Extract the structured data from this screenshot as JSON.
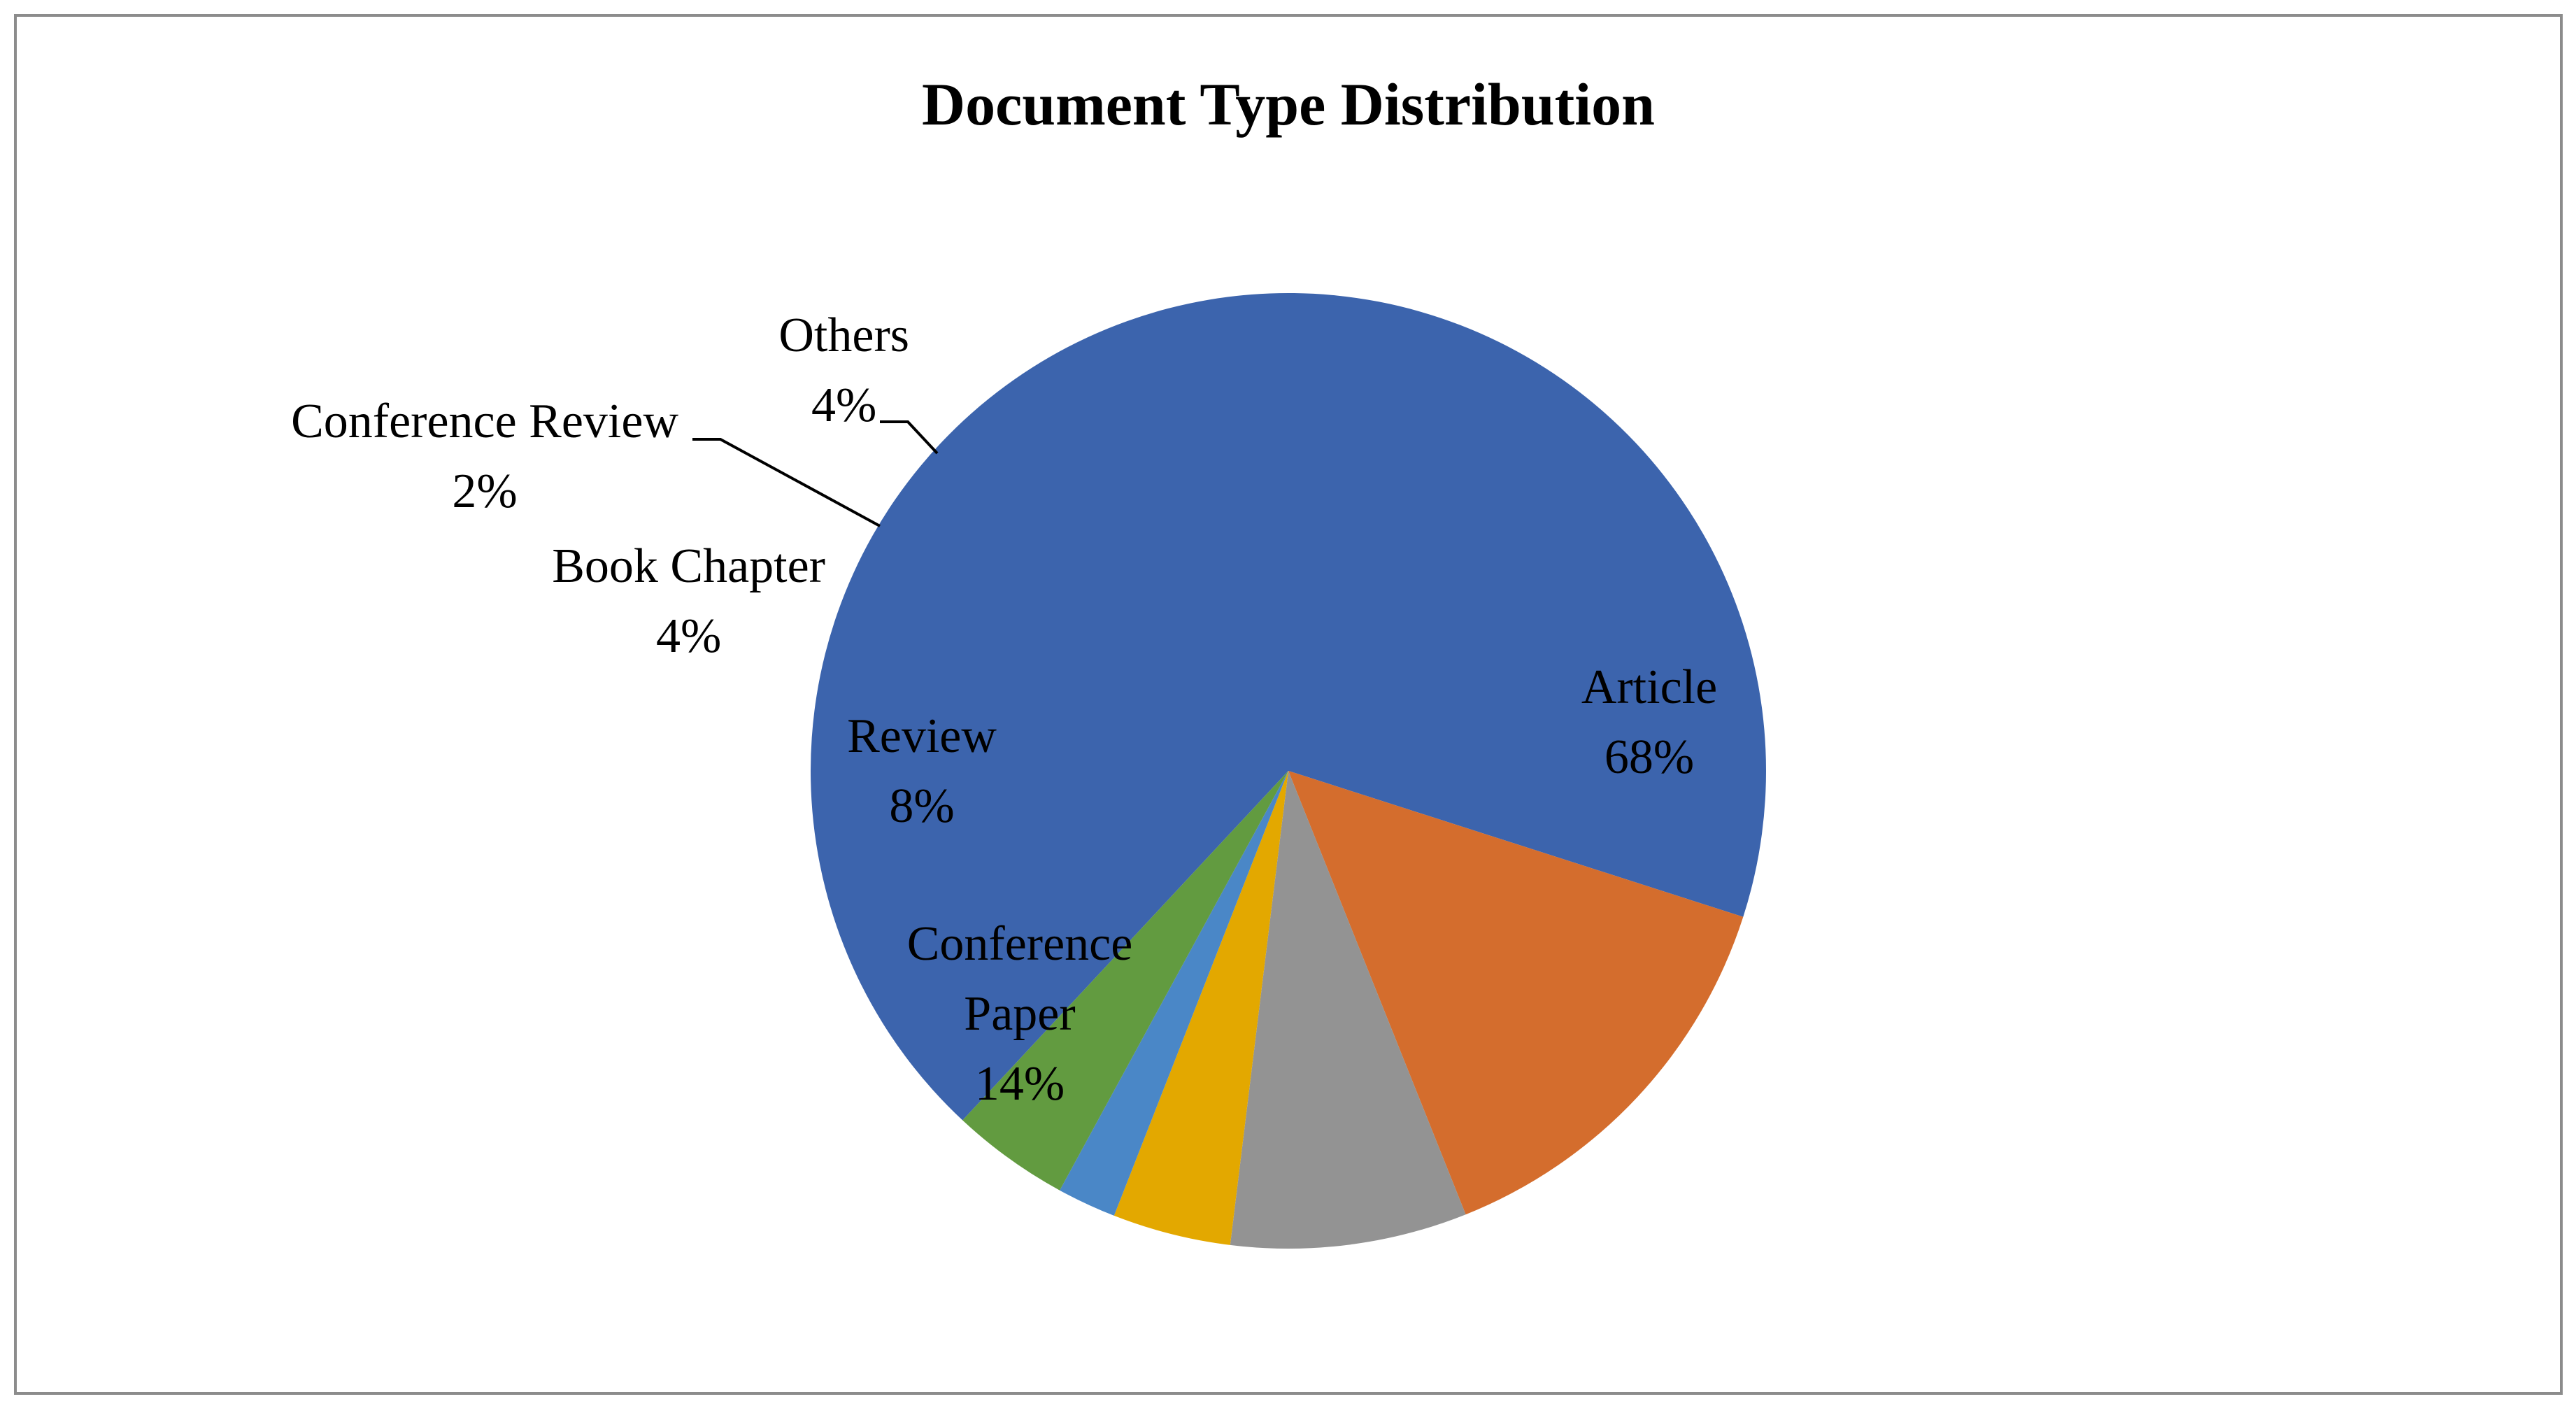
{
  "chart_data": {
    "type": "pie",
    "title": "Document Type Distribution",
    "start": "top-left, counterclockwise from Others",
    "slices": [
      {
        "name": "Article",
        "value": 68,
        "display": "68%",
        "color": "#3C64AD",
        "label_lines": [
          "Article",
          "68%"
        ]
      },
      {
        "name": "Conference Paper",
        "value": 14,
        "display": "14%",
        "color": "#D46D2D",
        "label_lines": [
          "Conference",
          "Paper",
          "14%"
        ]
      },
      {
        "name": "Review",
        "value": 8,
        "display": "8%",
        "color": "#939393",
        "label_lines": [
          "Review",
          "8%"
        ]
      },
      {
        "name": "Book Chapter",
        "value": 4,
        "display": "4%",
        "color": "#E3A800",
        "label_lines": [
          "Book Chapter",
          "4%"
        ]
      },
      {
        "name": "Conference Review",
        "value": 2,
        "display": "2%",
        "color": "#4A87C7",
        "label_lines": [
          "Conference Review",
          "2%"
        ]
      },
      {
        "name": "Others",
        "value": 4,
        "display": "4%",
        "color": "#629B40",
        "label_lines": [
          "Others",
          "4%"
        ]
      }
    ]
  }
}
